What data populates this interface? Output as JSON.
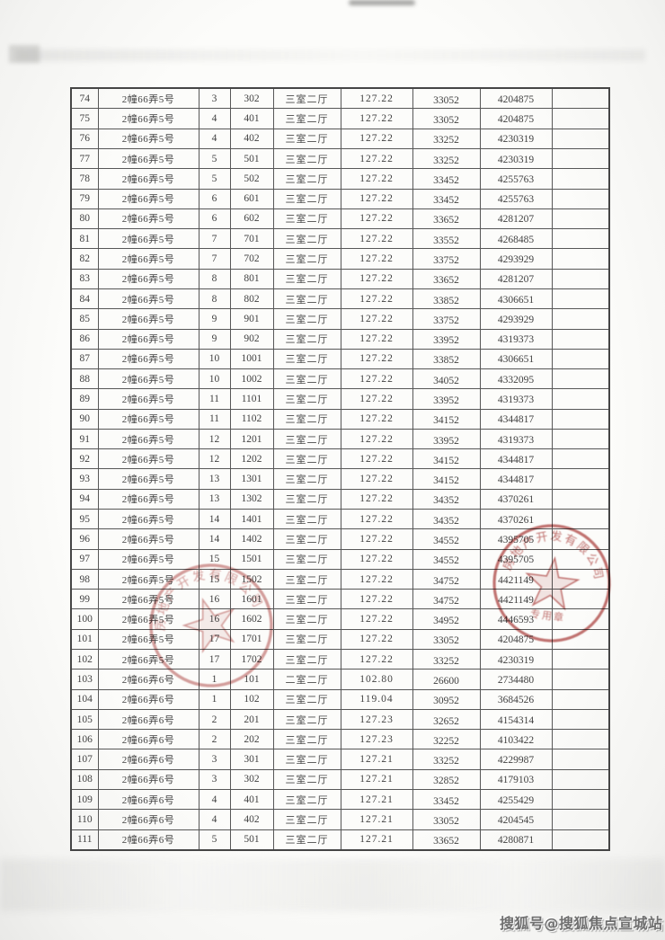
{
  "watermark": {
    "text": "搜狐号@搜狐焦点宣城站"
  },
  "stamps": {
    "left": {
      "arc_text": "房地产开发有限公司"
    },
    "right": {
      "arc_text": "房地产开发有限公司",
      "line_text": "专用章"
    },
    "color": "#b4504e"
  },
  "table": {
    "rows": [
      [
        "74",
        "2幢66弄5号",
        "3",
        "302",
        "三室二厅",
        "127.22",
        "33052",
        "4204875",
        ""
      ],
      [
        "75",
        "2幢66弄5号",
        "4",
        "401",
        "三室二厅",
        "127.22",
        "33052",
        "4204875",
        ""
      ],
      [
        "76",
        "2幢66弄5号",
        "4",
        "402",
        "三室二厅",
        "127.22",
        "33252",
        "4230319",
        ""
      ],
      [
        "77",
        "2幢66弄5号",
        "5",
        "501",
        "三室二厅",
        "127.22",
        "33252",
        "4230319",
        ""
      ],
      [
        "78",
        "2幢66弄5号",
        "5",
        "502",
        "三室二厅",
        "127.22",
        "33452",
        "4255763",
        ""
      ],
      [
        "79",
        "2幢66弄5号",
        "6",
        "601",
        "三室二厅",
        "127.22",
        "33452",
        "4255763",
        ""
      ],
      [
        "80",
        "2幢66弄5号",
        "6",
        "602",
        "三室二厅",
        "127.22",
        "33652",
        "4281207",
        ""
      ],
      [
        "81",
        "2幢66弄5号",
        "7",
        "701",
        "三室二厅",
        "127.22",
        "33552",
        "4268485",
        ""
      ],
      [
        "82",
        "2幢66弄5号",
        "7",
        "702",
        "三室二厅",
        "127.22",
        "33752",
        "4293929",
        ""
      ],
      [
        "83",
        "2幢66弄5号",
        "8",
        "801",
        "三室二厅",
        "127.22",
        "33652",
        "4281207",
        ""
      ],
      [
        "84",
        "2幢66弄5号",
        "8",
        "802",
        "三室二厅",
        "127.22",
        "33852",
        "4306651",
        ""
      ],
      [
        "85",
        "2幢66弄5号",
        "9",
        "901",
        "三室二厅",
        "127.22",
        "33752",
        "4293929",
        ""
      ],
      [
        "86",
        "2幢66弄5号",
        "9",
        "902",
        "三室二厅",
        "127.22",
        "33952",
        "4319373",
        ""
      ],
      [
        "87",
        "2幢66弄5号",
        "10",
        "1001",
        "三室二厅",
        "127.22",
        "33852",
        "4306651",
        ""
      ],
      [
        "88",
        "2幢66弄5号",
        "10",
        "1002",
        "三室二厅",
        "127.22",
        "34052",
        "4332095",
        ""
      ],
      [
        "89",
        "2幢66弄5号",
        "11",
        "1101",
        "三室二厅",
        "127.22",
        "33952",
        "4319373",
        ""
      ],
      [
        "90",
        "2幢66弄5号",
        "11",
        "1102",
        "三室二厅",
        "127.22",
        "34152",
        "4344817",
        ""
      ],
      [
        "91",
        "2幢66弄5号",
        "12",
        "1201",
        "三室二厅",
        "127.22",
        "33952",
        "4319373",
        ""
      ],
      [
        "92",
        "2幢66弄5号",
        "12",
        "1202",
        "三室二厅",
        "127.22",
        "34152",
        "4344817",
        ""
      ],
      [
        "93",
        "2幢66弄5号",
        "13",
        "1301",
        "三室二厅",
        "127.22",
        "34152",
        "4344817",
        ""
      ],
      [
        "94",
        "2幢66弄5号",
        "13",
        "1302",
        "三室二厅",
        "127.22",
        "34352",
        "4370261",
        ""
      ],
      [
        "95",
        "2幢66弄5号",
        "14",
        "1401",
        "三室二厅",
        "127.22",
        "34352",
        "4370261",
        ""
      ],
      [
        "96",
        "2幢66弄5号",
        "14",
        "1402",
        "三室二厅",
        "127.22",
        "34552",
        "4395705",
        ""
      ],
      [
        "97",
        "2幢66弄5号",
        "15",
        "1501",
        "三室二厅",
        "127.22",
        "34552",
        "4395705",
        ""
      ],
      [
        "98",
        "2幢66弄5号",
        "15",
        "1502",
        "三室二厅",
        "127.22",
        "34752",
        "4421149",
        ""
      ],
      [
        "99",
        "2幢66弄5号",
        "16",
        "1601",
        "三室二厅",
        "127.22",
        "34752",
        "4421149",
        ""
      ],
      [
        "100",
        "2幢66弄5号",
        "16",
        "1602",
        "三室二厅",
        "127.22",
        "34952",
        "4446593",
        ""
      ],
      [
        "101",
        "2幢66弄5号",
        "17",
        "1701",
        "三室二厅",
        "127.22",
        "33052",
        "4204875",
        ""
      ],
      [
        "102",
        "2幢66弄5号",
        "17",
        "1702",
        "三室二厅",
        "127.22",
        "33252",
        "4230319",
        ""
      ],
      [
        "103",
        "2幢66弄6号",
        "1",
        "101",
        "二室二厅",
        "102.80",
        "26600",
        "2734480",
        ""
      ],
      [
        "104",
        "2幢66弄6号",
        "1",
        "102",
        "三室二厅",
        "119.04",
        "30952",
        "3684526",
        ""
      ],
      [
        "105",
        "2幢66弄6号",
        "2",
        "201",
        "三室二厅",
        "127.23",
        "32652",
        "4154314",
        ""
      ],
      [
        "106",
        "2幢66弄6号",
        "2",
        "202",
        "三室二厅",
        "127.23",
        "32252",
        "4103422",
        ""
      ],
      [
        "107",
        "2幢66弄6号",
        "3",
        "301",
        "三室二厅",
        "127.21",
        "33252",
        "4229987",
        ""
      ],
      [
        "108",
        "2幢66弄6号",
        "3",
        "302",
        "三室二厅",
        "127.21",
        "32852",
        "4179103",
        ""
      ],
      [
        "109",
        "2幢66弄6号",
        "4",
        "401",
        "三室二厅",
        "127.21",
        "33452",
        "4255429",
        ""
      ],
      [
        "110",
        "2幢66弄6号",
        "4",
        "402",
        "三室二厅",
        "127.21",
        "33052",
        "4204545",
        ""
      ],
      [
        "111",
        "2幢66弄6号",
        "5",
        "501",
        "三室二厅",
        "127.21",
        "33652",
        "4280871",
        ""
      ]
    ]
  }
}
